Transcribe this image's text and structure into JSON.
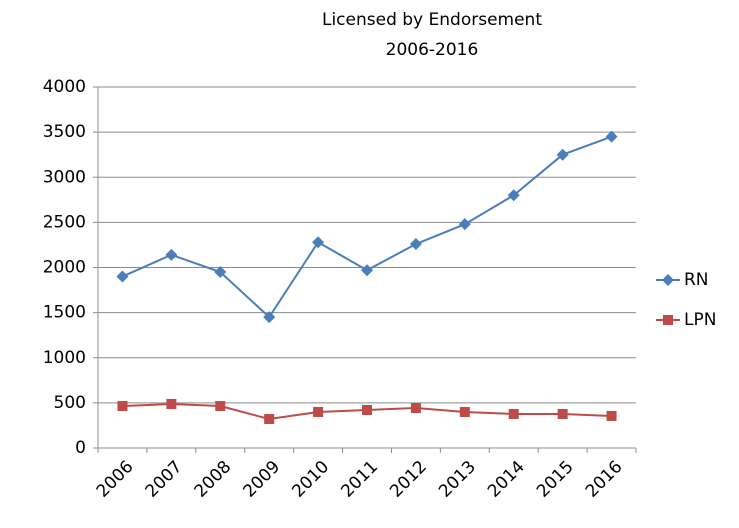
{
  "chart_data": {
    "type": "line",
    "title": "Licensed by Endorsement",
    "subtitle": "2006-2016",
    "categories": [
      "2006",
      "2007",
      "2008",
      "2009",
      "2010",
      "2011",
      "2012",
      "2013",
      "2014",
      "2015",
      "2016"
    ],
    "series": [
      {
        "name": "RN",
        "color": "#4a7ebb",
        "marker": "diamond",
        "values": [
          1900,
          2140,
          1950,
          1450,
          2280,
          1970,
          2260,
          2480,
          2800,
          3250,
          3450
        ]
      },
      {
        "name": "LPN",
        "color": "#be4b48",
        "marker": "square",
        "values": [
          465,
          488,
          465,
          321,
          399,
          421,
          443,
          399,
          377,
          377,
          355
        ]
      }
    ],
    "ylim": [
      0,
      4000
    ],
    "yticks": [
      0,
      500,
      1000,
      1500,
      2000,
      2500,
      3000,
      3500,
      4000
    ],
    "grid": true,
    "legend": "right"
  }
}
